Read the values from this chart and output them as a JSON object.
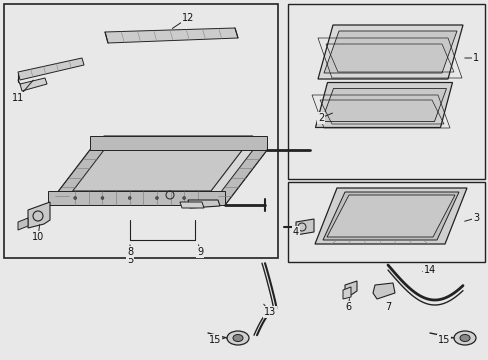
{
  "bg_color": "#e8e8e8",
  "line_color": "#222222",
  "box_bg": "#e8e8e8",
  "white_bg": "#ffffff",
  "figsize": [
    4.89,
    3.6
  ],
  "dpi": 100
}
